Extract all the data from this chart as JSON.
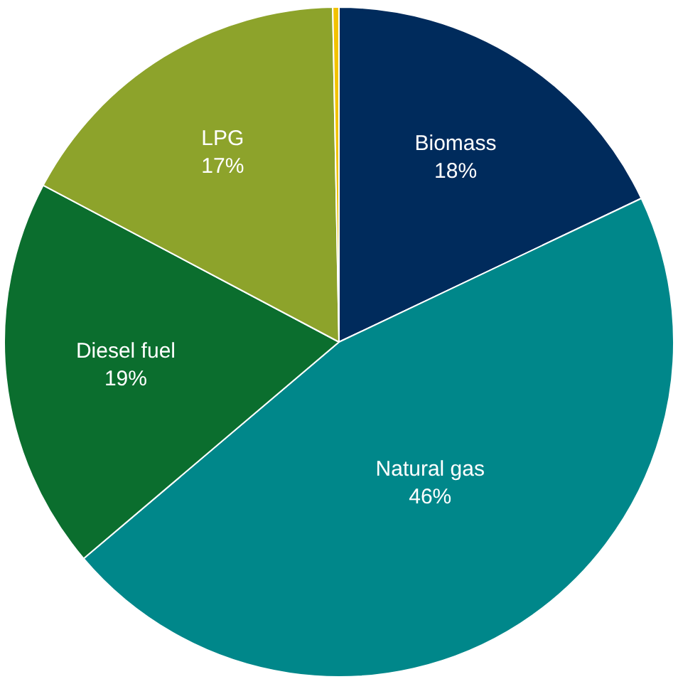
{
  "chart_data": {
    "type": "pie",
    "categories": [
      "Biomass",
      "Natural gas",
      "Diesel fuel",
      "LPG",
      null
    ],
    "values": [
      18,
      46,
      19,
      17,
      0.3
    ],
    "value_labels": [
      "18%",
      "46%",
      "19%",
      "17%",
      null
    ],
    "colors": [
      "#002b5c",
      "#00878a",
      "#0b6e2e",
      "#8da32b",
      "#f2c200"
    ],
    "legend": false
  }
}
